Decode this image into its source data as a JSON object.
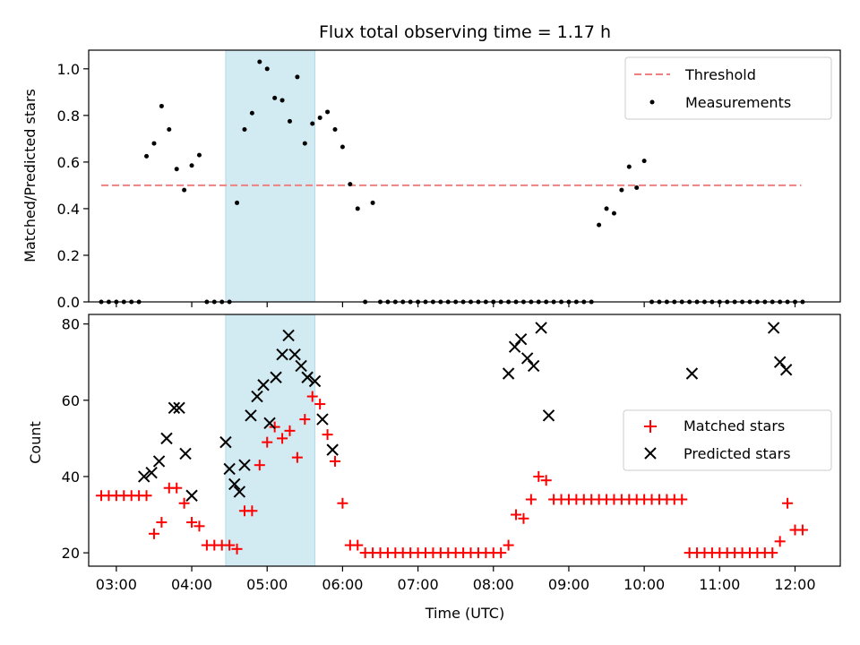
{
  "chart_data": {
    "type": "scatter",
    "title": "Flux total observing time = 1.17 h",
    "xlabel": "Time (UTC)",
    "x_ticks": [
      "03:00",
      "04:00",
      "05:00",
      "06:00",
      "07:00",
      "08:00",
      "09:00",
      "10:00",
      "11:00",
      "12:00"
    ],
    "x_range": [
      "02:38",
      "12:36"
    ],
    "highlight_span": [
      "04:27",
      "05:38"
    ],
    "highlight_color": "#add8e6",
    "panels": [
      {
        "id": "ratio",
        "ylabel": "Matched/Predicted stars",
        "ylim": [
          0,
          1.08
        ],
        "y_ticks": [
          "0.0",
          "0.2",
          "0.4",
          "0.6",
          "0.8",
          "1.0"
        ],
        "legend_position": "upper-right",
        "threshold": {
          "name": "Threshold",
          "value": 0.5,
          "x_from": "02:48",
          "x_to": "12:05",
          "color": "#f08080"
        },
        "series": [
          {
            "name": "Measurements",
            "marker": "dot",
            "color": "#000000",
            "points": [
              [
                "02:48",
                0
              ],
              [
                "02:54",
                0
              ],
              [
                "03:00",
                0
              ],
              [
                "03:06",
                0
              ],
              [
                "03:12",
                0
              ],
              [
                "03:18",
                0
              ],
              [
                "03:24",
                0.625
              ],
              [
                "03:30",
                0.68
              ],
              [
                "03:36",
                0.84
              ],
              [
                "03:42",
                0.74
              ],
              [
                "03:48",
                0.57
              ],
              [
                "03:54",
                0.48
              ],
              [
                "04:00",
                0.585
              ],
              [
                "04:06",
                0.63
              ],
              [
                "04:12",
                0
              ],
              [
                "04:18",
                0
              ],
              [
                "04:24",
                0
              ],
              [
                "04:30",
                0
              ],
              [
                "04:36",
                0.425
              ],
              [
                "04:42",
                0.74
              ],
              [
                "04:48",
                0.81
              ],
              [
                "04:54",
                1.03
              ],
              [
                "05:00",
                1.0
              ],
              [
                "05:06",
                0.875
              ],
              [
                "05:12",
                0.865
              ],
              [
                "05:18",
                0.775
              ],
              [
                "05:24",
                0.965
              ],
              [
                "05:30",
                0.68
              ],
              [
                "05:36",
                0.765
              ],
              [
                "05:42",
                0.79
              ],
              [
                "05:48",
                0.815
              ],
              [
                "05:54",
                0.74
              ],
              [
                "06:00",
                0.665
              ],
              [
                "06:06",
                0.505
              ],
              [
                "06:12",
                0.4
              ],
              [
                "06:18",
                0
              ],
              [
                "06:24",
                0.425
              ],
              [
                "06:30",
                0
              ],
              [
                "06:36",
                0
              ],
              [
                "06:42",
                0
              ],
              [
                "06:48",
                0
              ],
              [
                "06:54",
                0
              ],
              [
                "07:00",
                0
              ],
              [
                "07:06",
                0
              ],
              [
                "07:12",
                0
              ],
              [
                "07:18",
                0
              ],
              [
                "07:24",
                0
              ],
              [
                "07:30",
                0
              ],
              [
                "07:36",
                0
              ],
              [
                "07:42",
                0
              ],
              [
                "07:48",
                0
              ],
              [
                "07:54",
                0
              ],
              [
                "08:00",
                0
              ],
              [
                "08:06",
                0
              ],
              [
                "08:12",
                0
              ],
              [
                "08:18",
                0
              ],
              [
                "08:24",
                0
              ],
              [
                "08:30",
                0
              ],
              [
                "08:36",
                0
              ],
              [
                "08:42",
                0
              ],
              [
                "08:48",
                0
              ],
              [
                "08:54",
                0
              ],
              [
                "09:00",
                0
              ],
              [
                "09:06",
                0
              ],
              [
                "09:12",
                0
              ],
              [
                "09:18",
                0
              ],
              [
                "09:24",
                0.33
              ],
              [
                "09:30",
                0.4
              ],
              [
                "09:36",
                0.38
              ],
              [
                "09:42",
                0.48
              ],
              [
                "09:48",
                0.58
              ],
              [
                "09:54",
                0.49
              ],
              [
                "10:00",
                0.605
              ],
              [
                "10:06",
                0
              ],
              [
                "10:12",
                0
              ],
              [
                "10:18",
                0
              ],
              [
                "10:24",
                0
              ],
              [
                "10:30",
                0
              ],
              [
                "10:36",
                0
              ],
              [
                "10:42",
                0
              ],
              [
                "10:48",
                0
              ],
              [
                "10:54",
                0
              ],
              [
                "11:00",
                0
              ],
              [
                "11:06",
                0
              ],
              [
                "11:12",
                0
              ],
              [
                "11:18",
                0
              ],
              [
                "11:24",
                0
              ],
              [
                "11:30",
                0
              ],
              [
                "11:36",
                0
              ],
              [
                "11:42",
                0
              ],
              [
                "11:48",
                0
              ],
              [
                "11:54",
                0
              ],
              [
                "12:00",
                0
              ],
              [
                "12:06",
                0
              ]
            ]
          }
        ]
      },
      {
        "id": "count",
        "ylabel": "Count",
        "ylim": [
          16.5,
          82.5
        ],
        "y_ticks": [
          "20",
          "40",
          "60",
          "80"
        ],
        "legend_position": "center-right",
        "series": [
          {
            "name": "Matched stars",
            "marker": "plus",
            "color": "#ff0000",
            "points": [
              [
                "02:48",
                35
              ],
              [
                "02:54",
                35
              ],
              [
                "03:00",
                35
              ],
              [
                "03:06",
                35
              ],
              [
                "03:12",
                35
              ],
              [
                "03:18",
                35
              ],
              [
                "03:24",
                35
              ],
              [
                "03:30",
                25
              ],
              [
                "03:36",
                28
              ],
              [
                "03:42",
                37
              ],
              [
                "03:48",
                37
              ],
              [
                "03:54",
                33
              ],
              [
                "04:00",
                28
              ],
              [
                "04:06",
                27
              ],
              [
                "04:12",
                22
              ],
              [
                "04:18",
                22
              ],
              [
                "04:24",
                22
              ],
              [
                "04:30",
                22
              ],
              [
                "04:36",
                21
              ],
              [
                "04:42",
                31
              ],
              [
                "04:48",
                31
              ],
              [
                "04:54",
                43
              ],
              [
                "05:00",
                49
              ],
              [
                "05:06",
                53
              ],
              [
                "05:12",
                50
              ],
              [
                "05:18",
                52
              ],
              [
                "05:24",
                45
              ],
              [
                "05:30",
                55
              ],
              [
                "05:36",
                61
              ],
              [
                "05:42",
                59
              ],
              [
                "05:48",
                51
              ],
              [
                "05:54",
                44
              ],
              [
                "06:00",
                33
              ],
              [
                "06:06",
                22
              ],
              [
                "06:12",
                22
              ],
              [
                "06:18",
                20
              ],
              [
                "06:24",
                20
              ],
              [
                "06:30",
                20
              ],
              [
                "06:36",
                20
              ],
              [
                "06:42",
                20
              ],
              [
                "06:48",
                20
              ],
              [
                "06:54",
                20
              ],
              [
                "07:00",
                20
              ],
              [
                "07:06",
                20
              ],
              [
                "07:12",
                20
              ],
              [
                "07:18",
                20
              ],
              [
                "07:24",
                20
              ],
              [
                "07:30",
                20
              ],
              [
                "07:36",
                20
              ],
              [
                "07:42",
                20
              ],
              [
                "07:48",
                20
              ],
              [
                "07:54",
                20
              ],
              [
                "08:00",
                20
              ],
              [
                "08:06",
                20
              ],
              [
                "08:12",
                22
              ],
              [
                "08:18",
                30
              ],
              [
                "08:24",
                29
              ],
              [
                "08:30",
                34
              ],
              [
                "08:36",
                40
              ],
              [
                "08:42",
                39
              ],
              [
                "08:48",
                34
              ],
              [
                "08:54",
                34
              ],
              [
                "09:00",
                34
              ],
              [
                "09:06",
                34
              ],
              [
                "09:12",
                34
              ],
              [
                "09:18",
                34
              ],
              [
                "09:24",
                34
              ],
              [
                "09:30",
                34
              ],
              [
                "09:36",
                34
              ],
              [
                "09:42",
                34
              ],
              [
                "09:48",
                34
              ],
              [
                "09:54",
                34
              ],
              [
                "10:00",
                34
              ],
              [
                "10:06",
                34
              ],
              [
                "10:12",
                34
              ],
              [
                "10:18",
                34
              ],
              [
                "10:24",
                34
              ],
              [
                "10:30",
                34
              ],
              [
                "10:36",
                20
              ],
              [
                "10:42",
                20
              ],
              [
                "10:48",
                20
              ],
              [
                "10:54",
                20
              ],
              [
                "11:00",
                20
              ],
              [
                "11:06",
                20
              ],
              [
                "11:12",
                20
              ],
              [
                "11:18",
                20
              ],
              [
                "11:24",
                20
              ],
              [
                "11:30",
                20
              ],
              [
                "11:36",
                20
              ],
              [
                "11:42",
                20
              ],
              [
                "11:48",
                23
              ],
              [
                "11:54",
                33
              ],
              [
                "12:00",
                26
              ],
              [
                "12:06",
                26
              ]
            ]
          },
          {
            "name": "Predicted stars",
            "marker": "x",
            "color": "#000000",
            "points": [
              [
                "03:22",
                40
              ],
              [
                "03:28",
                41
              ],
              [
                "03:34",
                44
              ],
              [
                "03:40",
                50
              ],
              [
                "03:46",
                58
              ],
              [
                "03:50",
                58
              ],
              [
                "03:55",
                46
              ],
              [
                "04:00",
                35
              ],
              [
                "04:27",
                49
              ],
              [
                "04:30",
                42
              ],
              [
                "04:34",
                38
              ],
              [
                "04:38",
                36
              ],
              [
                "04:42",
                43
              ],
              [
                "04:47",
                56
              ],
              [
                "04:52",
                61
              ],
              [
                "04:57",
                64
              ],
              [
                "05:02",
                54
              ],
              [
                "05:07",
                66
              ],
              [
                "05:12",
                72
              ],
              [
                "05:17",
                77
              ],
              [
                "05:22",
                72
              ],
              [
                "05:27",
                69
              ],
              [
                "05:32",
                66
              ],
              [
                "05:38",
                65
              ],
              [
                "05:44",
                55
              ],
              [
                "05:52",
                47
              ],
              [
                "08:12",
                67
              ],
              [
                "08:17",
                74
              ],
              [
                "08:22",
                76
              ],
              [
                "08:27",
                71
              ],
              [
                "08:32",
                69
              ],
              [
                "08:38",
                79
              ],
              [
                "08:44",
                56
              ],
              [
                "10:38",
                67
              ],
              [
                "11:43",
                79
              ],
              [
                "11:48",
                70
              ],
              [
                "11:53",
                68
              ]
            ]
          }
        ]
      }
    ]
  }
}
